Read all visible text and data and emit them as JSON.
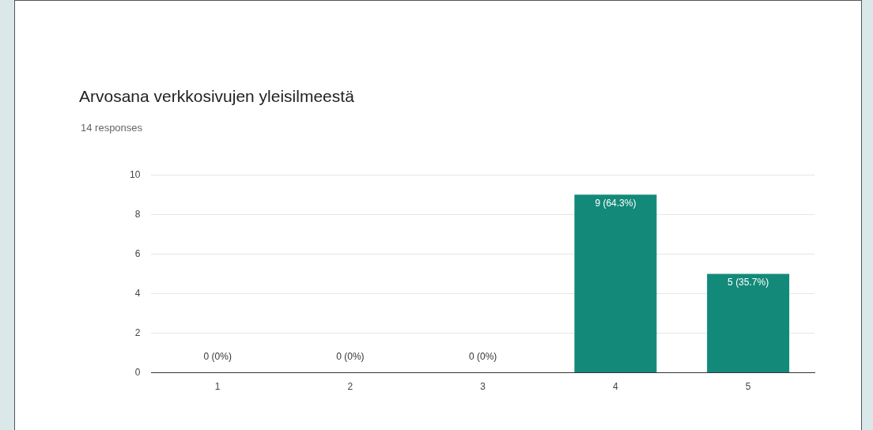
{
  "chart_data": {
    "type": "bar",
    "title": "Arvosana verkkosivujen yleisilmeestä",
    "subtitle": "14 responses",
    "categories": [
      "1",
      "2",
      "3",
      "4",
      "5"
    ],
    "values": [
      0,
      0,
      0,
      9,
      5
    ],
    "color": "#138a79",
    "value_labels": [
      "0 (0%)",
      "0 (0%)",
      "0 (0%)",
      "9 (64.3%)",
      "5 (35.7%)"
    ],
    "ylim": [
      0,
      10
    ],
    "yticks": [
      0,
      2,
      4,
      6,
      8,
      10
    ],
    "grid": "y"
  }
}
